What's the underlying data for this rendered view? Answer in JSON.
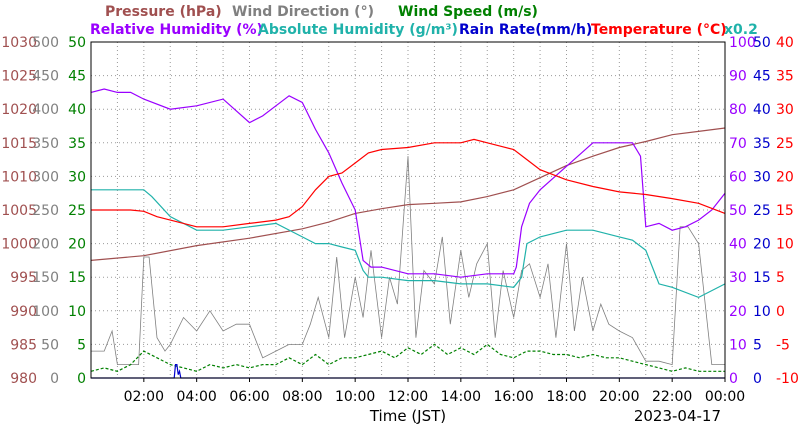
{
  "chart_data": {
    "type": "line",
    "date_label": "2023-04-17",
    "x_axis": {
      "label": "Time (JST)",
      "range": [
        "00:00",
        "24:00"
      ],
      "ticks": [
        "02:00",
        "04:00",
        "06:00",
        "08:00",
        "10:00",
        "12:00",
        "14:00",
        "16:00",
        "18:00",
        "20:00",
        "22:00",
        "00:00"
      ]
    },
    "legend": {
      "row1": [
        {
          "label": "Pressure (hPa)",
          "color": "#a05050"
        },
        {
          "label": "Wind Direction (°)",
          "color": "#808080"
        },
        {
          "label": "Wind Speed (m/s)",
          "color": "#008000"
        }
      ],
      "row2": [
        {
          "label": "Relative Humidity (%)",
          "color": "#9a00ff"
        },
        {
          "label": "Absolute Humidity (g/m³)",
          "color": "#20b2aa"
        },
        {
          "label": "Rain Rate(mm/h)",
          "color": "#0000cc"
        },
        {
          "label": "Temperature (°C)",
          "color": "#ff0000"
        }
      ],
      "multiplier": "x0.2"
    },
    "axes": {
      "pressure": {
        "range": [
          980,
          1030
        ],
        "ticks": [
          "1030",
          "1025",
          "1020",
          "1015",
          "1010",
          "1005",
          "1000",
          "995",
          "990",
          "985",
          "980"
        ],
        "color": "#a05050"
      },
      "wind_direction": {
        "range": [
          0,
          500
        ],
        "ticks": [
          "500",
          "450",
          "400",
          "350",
          "300",
          "250",
          "200",
          "150",
          "100",
          "50",
          "0"
        ],
        "color": "#808080"
      },
      "wind_speed": {
        "range": [
          0,
          50
        ],
        "ticks": [
          "50",
          "45",
          "40",
          "35",
          "30",
          "25",
          "20",
          "15",
          "10",
          "5",
          "0"
        ],
        "color": "#008000"
      },
      "relative_humidity": {
        "range": [
          0,
          100
        ],
        "ticks": [
          "100",
          "90",
          "80",
          "70",
          "60",
          "50",
          "40",
          "30",
          "20",
          "10",
          "0"
        ],
        "color": "#9a00ff"
      },
      "rain_rate": {
        "range": [
          0,
          50
        ],
        "ticks": [
          "50",
          "45",
          "40",
          "35",
          "30",
          "25",
          "20",
          "15",
          "10",
          "5",
          "0"
        ],
        "color": "#0000cc"
      },
      "temperature": {
        "range": [
          -10,
          40
        ],
        "ticks": [
          "40",
          "35",
          "30",
          "25",
          "20",
          "15",
          "10",
          "5",
          "0",
          "-5",
          "-10"
        ],
        "color": "#ff0000"
      }
    },
    "series": [
      {
        "name": "Temperature",
        "axis": "temperature",
        "color": "#ff0000",
        "x": [
          0,
          1,
          1.5,
          2,
          2.5,
          3,
          3.5,
          4,
          5,
          6,
          7,
          7.5,
          8,
          8.5,
          9,
          9.5,
          10,
          10.5,
          11,
          12,
          13,
          14,
          14.5,
          15,
          15.5,
          16,
          16.5,
          17,
          18,
          19,
          20,
          21,
          22,
          23,
          24
        ],
        "y": [
          15,
          15,
          15,
          14.8,
          14,
          13.5,
          13,
          12.5,
          12.5,
          13,
          13.5,
          14,
          15.5,
          18,
          20,
          20.5,
          22,
          23.5,
          24,
          24.3,
          25,
          25,
          25.5,
          25,
          24.5,
          24,
          22.5,
          21,
          19.5,
          18.5,
          17.7,
          17.3,
          16.7,
          16,
          14.5
        ]
      },
      {
        "name": "Relative Humidity",
        "axis": "relative_humidity",
        "color": "#9a00ff",
        "x": [
          0,
          0.5,
          1,
          1.5,
          2,
          3,
          4,
          5,
          6,
          6.5,
          7,
          7.5,
          8,
          8.5,
          9,
          9.5,
          10,
          10.3,
          10.6,
          11,
          12,
          13,
          14,
          15,
          16,
          16.1,
          16.3,
          16.6,
          17,
          18,
          19,
          20,
          20.5,
          20.8,
          21,
          21.5,
          22,
          22.5,
          23,
          23.5,
          24
        ],
        "y": [
          85,
          86,
          85,
          85,
          83,
          80,
          81,
          83,
          76,
          78,
          81,
          84,
          82,
          74,
          67,
          58,
          50,
          35,
          33,
          33,
          31,
          31,
          30,
          31,
          31,
          33,
          45,
          52,
          56,
          63,
          70,
          70,
          70,
          66,
          45,
          46,
          44,
          45,
          47,
          50,
          55
        ]
      },
      {
        "name": "Absolute Humidity",
        "axis": "wind_speed",
        "color": "#20b2aa",
        "x": [
          0,
          1,
          1.5,
          2,
          2.3,
          3,
          4,
          5,
          6,
          7,
          8,
          8.5,
          9,
          9.5,
          10,
          10.3,
          10.5,
          11,
          12,
          13,
          14,
          15,
          16,
          16.3,
          16.5,
          17,
          18,
          19,
          20,
          20.5,
          21,
          21.5,
          22,
          23,
          24
        ],
        "y": [
          28,
          28,
          28,
          28,
          27,
          24,
          22,
          22,
          22.5,
          23,
          21,
          20,
          20,
          19.5,
          19,
          16,
          15,
          15,
          14.5,
          14.5,
          14,
          14,
          13.5,
          15,
          20,
          21,
          22,
          22,
          21,
          20.5,
          19,
          14,
          13.5,
          12,
          14
        ]
      },
      {
        "name": "Pressure",
        "axis": "pressure",
        "color": "#a05050",
        "x": [
          0,
          2,
          4,
          6,
          8,
          9,
          10,
          11,
          12,
          13,
          14,
          15,
          16,
          17,
          18,
          19,
          20,
          21,
          22,
          23,
          24
        ],
        "y": [
          997.5,
          998.2,
          999.7,
          1000.8,
          1002.2,
          1003.2,
          1004.5,
          1005.2,
          1005.8,
          1006.0,
          1006.2,
          1007.0,
          1008.0,
          1009.8,
          1011.6,
          1013.0,
          1014.3,
          1015.2,
          1016.2,
          1016.7,
          1017.2
        ]
      },
      {
        "name": "Wind Direction",
        "axis": "wind_direction",
        "color": "#808080",
        "x": [
          0,
          0.5,
          0.8,
          1,
          1.5,
          1.8,
          2,
          2.2,
          2.5,
          2.8,
          3,
          3.5,
          4,
          4.5,
          5,
          5.5,
          6,
          6.5,
          7,
          7.5,
          8,
          8.3,
          8.6,
          9,
          9.3,
          9.6,
          10,
          10.3,
          10.6,
          11,
          11.3,
          11.6,
          12,
          12.3,
          12.6,
          13,
          13.3,
          13.6,
          14,
          14.3,
          14.6,
          15,
          15.3,
          15.6,
          16,
          16.3,
          16.6,
          17,
          17.3,
          17.6,
          18,
          18.3,
          18.6,
          19,
          19.3,
          19.6,
          20,
          20.5,
          21,
          21.5,
          22,
          22.3,
          22.6,
          23,
          23.5,
          24
        ],
        "y": [
          40,
          40,
          70,
          20,
          20,
          20,
          180,
          180,
          60,
          40,
          50,
          90,
          70,
          100,
          70,
          80,
          80,
          30,
          40,
          50,
          50,
          80,
          120,
          60,
          180,
          60,
          150,
          90,
          190,
          60,
          150,
          110,
          330,
          60,
          160,
          140,
          210,
          80,
          190,
          120,
          170,
          200,
          60,
          160,
          90,
          160,
          170,
          120,
          170,
          60,
          200,
          70,
          150,
          70,
          110,
          80,
          70,
          60,
          25,
          25,
          20,
          225,
          225,
          200,
          20,
          20
        ]
      },
      {
        "name": "Wind Speed",
        "axis": "wind_speed",
        "color": "#008000",
        "x": [
          0,
          0.5,
          1,
          1.5,
          2,
          2.5,
          3,
          3.5,
          4,
          4.5,
          5,
          5.5,
          6,
          6.5,
          7,
          7.5,
          8,
          8.5,
          9,
          9.5,
          10,
          10.5,
          11,
          11.5,
          12,
          12.5,
          13,
          13.5,
          14,
          14.5,
          15,
          15.5,
          16,
          16.5,
          17,
          17.5,
          18,
          18.5,
          19,
          19.5,
          20,
          20.5,
          21,
          21.5,
          22,
          22.5,
          23,
          23.5,
          24
        ],
        "y": [
          1,
          1.5,
          1,
          2,
          4,
          3,
          2,
          1.5,
          1,
          2,
          1.5,
          2,
          1.5,
          2,
          2,
          3,
          2,
          3.5,
          2,
          3,
          3,
          3.5,
          4,
          3,
          4.5,
          3.5,
          5,
          3.5,
          4.5,
          3.5,
          5,
          3.5,
          3,
          4,
          4,
          3.5,
          3.5,
          3,
          3.5,
          3,
          3,
          2.5,
          2,
          1.5,
          1,
          1.5,
          1,
          1,
          1
        ]
      },
      {
        "name": "Rain Rate",
        "axis": "rain_rate",
        "color": "#0000cc",
        "x": [
          0,
          3.15,
          3.2,
          3.25,
          3.3,
          3.35,
          3.4,
          24
        ],
        "y": [
          0,
          0,
          2,
          2,
          0.5,
          1,
          0,
          0
        ]
      }
    ]
  }
}
